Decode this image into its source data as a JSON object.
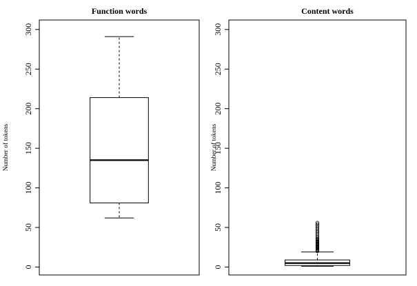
{
  "chart_data": [
    {
      "type": "boxplot",
      "title": "Function words",
      "ylabel": "Number of tokens",
      "ylim": [
        -10,
        312
      ],
      "yticks": [
        0,
        50,
        100,
        150,
        200,
        250,
        300
      ],
      "box": {
        "whisker_low": 62,
        "q1": 81,
        "median": 135,
        "q3": 214,
        "whisker_high": 291
      },
      "outliers": []
    },
    {
      "type": "boxplot",
      "title": "Content words",
      "ylabel": "Number of tokens",
      "ylim": [
        -10,
        312
      ],
      "yticks": [
        0,
        50,
        100,
        150,
        200,
        250,
        300
      ],
      "box": {
        "whisker_low": 1,
        "q1": 2,
        "median": 5,
        "q3": 9,
        "whisker_high": 19
      },
      "outliers": [
        20,
        21,
        22,
        23,
        24,
        25,
        26,
        27,
        28,
        29,
        30,
        31,
        32,
        33,
        34,
        35,
        36,
        38,
        40,
        42,
        44,
        46,
        48,
        50,
        52,
        54,
        56
      ]
    }
  ]
}
